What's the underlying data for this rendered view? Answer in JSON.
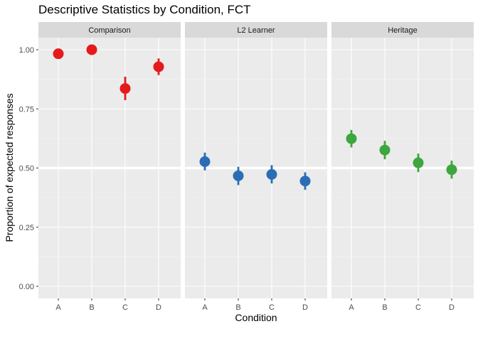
{
  "title": "Descriptive Statistics by Condition, FCT",
  "chart_data": {
    "type": "scatter",
    "title": "Descriptive Statistics by Condition, FCT",
    "xlabel": "Condition",
    "ylabel": "Proportion of expected responses",
    "categories": [
      "A",
      "B",
      "C",
      "D"
    ],
    "ylim": [
      0,
      1
    ],
    "yticks": [
      0.0,
      0.25,
      0.5,
      0.75,
      1.0
    ],
    "ytick_labels": [
      "0.00",
      "0.25",
      "0.50",
      "0.75",
      "1.00"
    ],
    "reference_line_y": 0.5,
    "grid": true,
    "facets": [
      {
        "name": "Comparison",
        "color": "#e41a1c",
        "values": [
          0.983,
          1.0,
          0.836,
          0.928
        ],
        "ci_low": [
          0.983,
          1.0,
          0.787,
          0.893
        ],
        "ci_high": [
          0.983,
          1.0,
          0.886,
          0.963
        ]
      },
      {
        "name": "L2 Learner",
        "color": "#2b6db5",
        "values": [
          0.527,
          0.467,
          0.473,
          0.445
        ],
        "ci_low": [
          0.49,
          0.428,
          0.435,
          0.408
        ],
        "ci_high": [
          0.565,
          0.505,
          0.512,
          0.482
        ]
      },
      {
        "name": "Heritage",
        "color": "#3ea63e",
        "values": [
          0.624,
          0.576,
          0.522,
          0.493
        ],
        "ci_low": [
          0.587,
          0.537,
          0.483,
          0.455
        ],
        "ci_high": [
          0.661,
          0.615,
          0.561,
          0.531
        ]
      }
    ]
  }
}
